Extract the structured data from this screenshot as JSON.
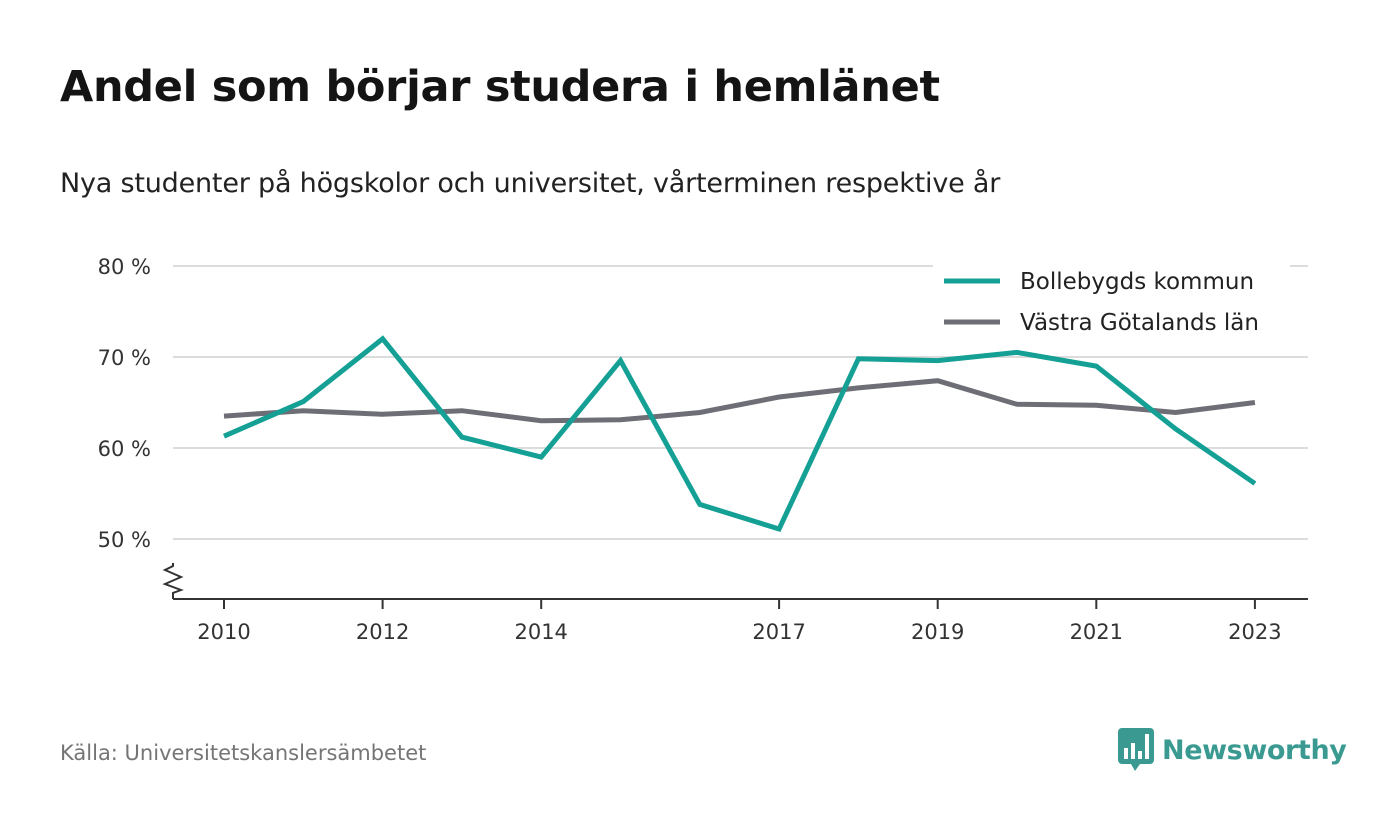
{
  "header": {
    "title": "Andel som börjar studera i hemlänet",
    "subtitle": "Nya studenter på högskolor och universitet, vårterminen respektive år"
  },
  "footer": {
    "source": "Källa: Universitetskanslersämbetet",
    "brand": "Newsworthy",
    "brand_icon": "bar-chart-speech-bubble-icon"
  },
  "colors": {
    "bollebygd": "#14a095",
    "vastra": "#6e6e76",
    "grid": "#dcdcdc",
    "axis": "#333333",
    "brand": "#3a9a91"
  },
  "chart_data": {
    "type": "line",
    "xlabel": "",
    "ylabel": "",
    "x": [
      2010,
      2011,
      2012,
      2013,
      2014,
      2015,
      2016,
      2017,
      2018,
      2019,
      2020,
      2021,
      2022,
      2023
    ],
    "x_tick_labels": [
      "2010",
      "2012",
      "2014",
      "2017",
      "2019",
      "2021",
      "2023"
    ],
    "y_tick_labels": [
      "80 %",
      "70 %",
      "60 %",
      "50 %"
    ],
    "y_ticks": [
      80,
      70,
      60,
      50
    ],
    "ylim": [
      43.5,
      81
    ],
    "y_axis_break": true,
    "grid": true,
    "legend_position": "top-right",
    "series": [
      {
        "name": "Bollebygds kommun",
        "color": "#14a095",
        "values": [
          61.3,
          65.1,
          72.0,
          61.2,
          59.0,
          69.6,
          53.8,
          51.1,
          69.8,
          69.6,
          70.5,
          69.0,
          62.1,
          56.1
        ]
      },
      {
        "name": "Västra Götalands län",
        "color": "#6e6e76",
        "values": [
          63.5,
          64.1,
          63.7,
          64.1,
          63.0,
          63.1,
          63.9,
          65.6,
          66.6,
          67.4,
          64.8,
          64.7,
          63.9,
          65.0
        ]
      }
    ]
  }
}
